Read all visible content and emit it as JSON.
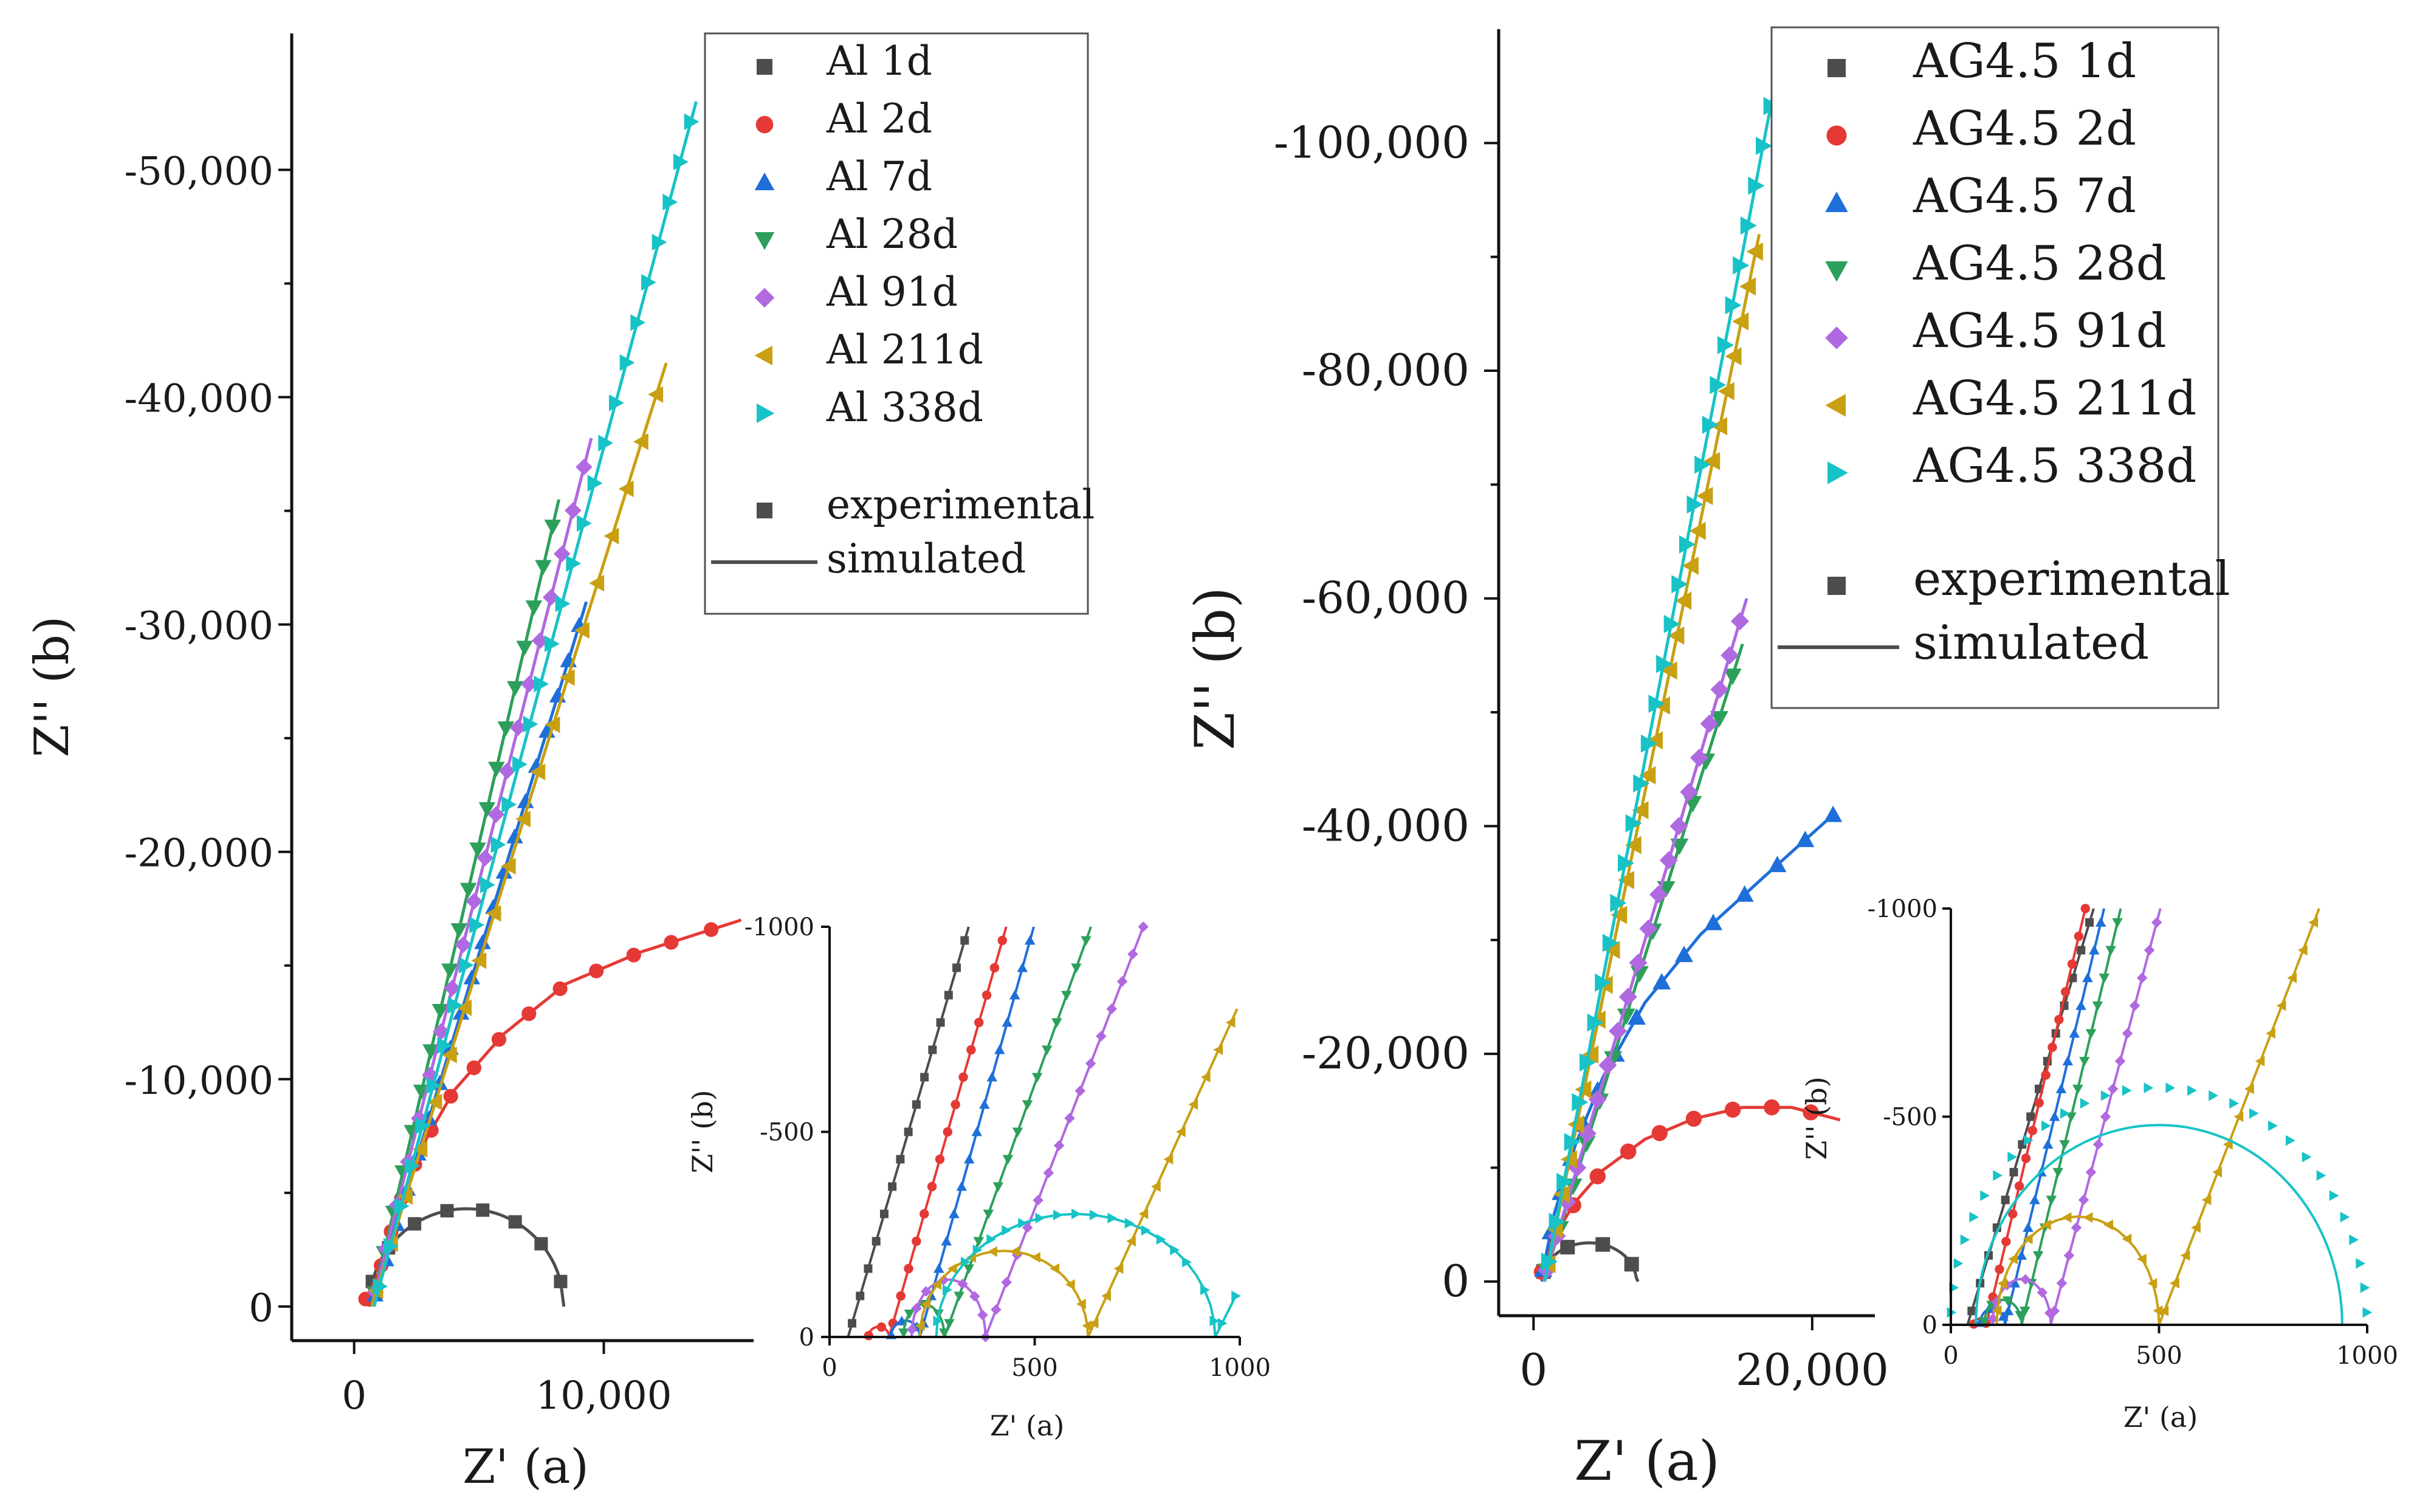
{
  "figure": {
    "colors": {
      "1d": "#4d4d4d",
      "2d": "#e53935",
      "7d": "#1e6fd9",
      "28d": "#2ca05a",
      "91d": "#b069e0",
      "211d": "#c8a012",
      "338d": "#17c3c6"
    }
  },
  "chart_data": [
    {
      "type": "scatter",
      "id": "left-main",
      "xlabel": "Z' (a)",
      "ylabel": "Z'' (b)",
      "xlim": [
        -2500,
        16000
      ],
      "ylim": [
        1500,
        -56000
      ],
      "x_ticks": [
        0,
        10000
      ],
      "x_tick_labels": [
        "0",
        "10,000"
      ],
      "y_ticks": [
        0,
        -10000,
        -20000,
        -30000,
        -40000,
        -50000
      ],
      "y_tick_labels": [
        "0",
        "-10,000",
        "-20,000",
        "-30,000",
        "-40,000",
        "-50,000"
      ],
      "legend": {
        "position": "top-right",
        "entries": [
          "Al 1d",
          "Al 2d",
          "Al 7d",
          "Al 28d",
          "Al 91d",
          "Al 211d",
          "Al 338d"
        ],
        "extra": [
          "experimental",
          "simulated"
        ]
      },
      "series": [
        {
          "name": "Al 1d",
          "key": "1d",
          "kind": "arc",
          "x0": 600,
          "r": 3900,
          "amp": 4300,
          "xend": 8400
        },
        {
          "name": "Al 2d",
          "key": "2d",
          "kind": "curve",
          "points": [
            [
              400,
              -200
            ],
            [
              1000,
              -1500
            ],
            [
              1800,
              -4500
            ],
            [
              2700,
              -7000
            ],
            [
              4000,
              -9500
            ],
            [
              6000,
              -12000
            ],
            [
              8500,
              -14200
            ],
            [
              11500,
              -15600
            ],
            [
              15500,
              -17000
            ]
          ]
        },
        {
          "name": "Al 7d",
          "key": "7d",
          "kind": "line",
          "x0": 700,
          "xend": 9300,
          "yend": -31000
        },
        {
          "name": "Al 28d",
          "key": "28d",
          "kind": "line",
          "x0": 700,
          "xend": 8200,
          "yend": -35500
        },
        {
          "name": "Al 91d",
          "key": "91d",
          "kind": "line",
          "x0": 700,
          "xend": 9500,
          "yend": -38200
        },
        {
          "name": "Al 211d",
          "key": "211d",
          "kind": "line",
          "x0": 700,
          "xend": 12500,
          "yend": -41500
        },
        {
          "name": "Al 338d",
          "key": "338d",
          "kind": "line",
          "x0": 800,
          "xend": 13700,
          "yend": -53000
        }
      ]
    },
    {
      "type": "scatter",
      "id": "left-inset",
      "xlabel": "Z' (a)",
      "ylabel": "Z'' (b)",
      "xlim": [
        0,
        1000
      ],
      "ylim": [
        0,
        -1000
      ],
      "x_ticks": [
        0,
        500,
        1000
      ],
      "x_tick_labels": [
        "0",
        "500",
        "1000"
      ],
      "y_ticks": [
        0,
        -500,
        -1000
      ],
      "y_tick_labels": [
        "0",
        "-500",
        "-1000"
      ],
      "series": [
        {
          "name": "Al 1d",
          "key": "1d",
          "kind": "steep",
          "x0": 45,
          "r": 0,
          "amp": 0,
          "slope": 3.4
        },
        {
          "name": "Al 2d",
          "key": "2d",
          "kind": "steep",
          "x0": 95,
          "r": 25,
          "amp": 25,
          "slope": 3.5
        },
        {
          "name": "Al 7d",
          "key": "7d",
          "kind": "steep",
          "x0": 150,
          "r": 35,
          "amp": 40,
          "slope": 3.6
        },
        {
          "name": "Al 28d",
          "key": "28d",
          "kind": "steep",
          "x0": 180,
          "r": 50,
          "amp": 80,
          "slope": 2.8
        },
        {
          "name": "Al 91d",
          "key": "91d",
          "kind": "steep",
          "x0": 200,
          "r": 90,
          "amp": 140,
          "slope": 2.6
        },
        {
          "name": "Al 211d",
          "key": "211d",
          "kind": "steep",
          "x0": 220,
          "r": 205,
          "amp": 210,
          "slope": 2.2
        },
        {
          "name": "Al 338d",
          "key": "338d",
          "kind": "steep",
          "x0": 260,
          "r": 340,
          "amp": 300,
          "slope": 2.0
        }
      ]
    },
    {
      "type": "scatter",
      "id": "right-main",
      "xlabel": "Z' (a)",
      "ylabel": "Z'' (b)",
      "xlim": [
        -2500,
        24500
      ],
      "ylim": [
        3000,
        -110000
      ],
      "x_ticks": [
        0,
        20000
      ],
      "x_tick_labels": [
        "0",
        "20,000"
      ],
      "y_ticks": [
        0,
        -20000,
        -40000,
        -60000,
        -80000,
        -100000
      ],
      "y_tick_labels": [
        "0",
        "-20,000",
        "-40,000",
        "-60,000",
        "-80,000",
        "-100,000"
      ],
      "legend": {
        "position": "top-right",
        "entries": [
          "AG4.5 1d",
          "AG4.5 2d",
          "AG4.5 7d",
          "AG4.5 28d",
          "AG4.5 91d",
          "AG4.5 211d",
          "AG4.5 338d"
        ],
        "extra": [
          "experimental",
          "simulated"
        ]
      },
      "series": [
        {
          "name": "AG4.5 1d",
          "key": "1d",
          "kind": "arc",
          "x0": 600,
          "r": 3400,
          "amp": 3400,
          "xend": 7500
        },
        {
          "name": "AG4.5 2d",
          "key": "2d",
          "kind": "curve",
          "points": [
            [
              500,
              -500
            ],
            [
              1500,
              -4000
            ],
            [
              3000,
              -7000
            ],
            [
              5000,
              -9800
            ],
            [
              8000,
              -12500
            ],
            [
              11500,
              -14300
            ],
            [
              15000,
              -15300
            ],
            [
              18500,
              -15300
            ],
            [
              22000,
              -14200
            ]
          ]
        },
        {
          "name": "AG4.5 7d",
          "key": "7d",
          "kind": "curve",
          "points": [
            [
              600,
              -500
            ],
            [
              1500,
              -6000
            ],
            [
              3000,
              -12000
            ],
            [
              5000,
              -18000
            ],
            [
              8000,
              -24500
            ],
            [
              12000,
              -30500
            ],
            [
              16500,
              -35500
            ],
            [
              21500,
              -41000
            ]
          ]
        },
        {
          "name": "AG4.5 28d",
          "key": "28d",
          "kind": "line",
          "x0": 700,
          "xend": 15000,
          "yend": -56000
        },
        {
          "name": "AG4.5 91d",
          "key": "91d",
          "kind": "line",
          "x0": 700,
          "xend": 15300,
          "yend": -60000
        },
        {
          "name": "AG4.5 211d",
          "key": "211d",
          "kind": "line",
          "x0": 800,
          "xend": 16200,
          "yend": -92000
        },
        {
          "name": "AG4.5 338d",
          "key": "338d",
          "kind": "line",
          "x0": 800,
          "xend": 17300,
          "yend": -105000
        }
      ]
    },
    {
      "type": "scatter",
      "id": "right-inset",
      "xlabel": "Z' (a)",
      "ylabel": "Z'' (b)",
      "xlim": [
        0,
        1000
      ],
      "ylim": [
        0,
        -1000
      ],
      "x_ticks": [
        0,
        500,
        1000
      ],
      "x_tick_labels": [
        "0",
        "500",
        "1000"
      ],
      "y_ticks": [
        0,
        -500,
        -1000
      ],
      "y_tick_labels": [
        "0",
        "-500",
        "-1000"
      ],
      "series": [
        {
          "name": "AG4.5 1d",
          "key": "1d",
          "kind": "steep",
          "x0": 40,
          "r": 0,
          "amp": 0,
          "slope": 3.3
        },
        {
          "name": "AG4.5 2d",
          "key": "2d",
          "kind": "steep",
          "x0": 55,
          "r": 15,
          "amp": 15,
          "slope": 4.2
        },
        {
          "name": "AG4.5 7d",
          "key": "7d",
          "kind": "steep",
          "x0": 70,
          "r": 30,
          "amp": 40,
          "slope": 4.2
        },
        {
          "name": "AG4.5 28d",
          "key": "28d",
          "kind": "steep",
          "x0": 80,
          "r": 45,
          "amp": 60,
          "slope": 4.2
        },
        {
          "name": "AG4.5 91d",
          "key": "91d",
          "kind": "steep",
          "x0": 100,
          "r": 70,
          "amp": 110,
          "slope": 3.8
        },
        {
          "name": "AG4.5 211d",
          "key": "211d",
          "kind": "steep",
          "x0": 110,
          "r": 195,
          "amp": 260,
          "slope": 2.6
        },
        {
          "name": "AG4.5 338d",
          "key": "338d",
          "kind": "arc-only",
          "x0": 60,
          "r": 440,
          "amp": 480,
          "amp_exp": 570
        }
      ]
    }
  ]
}
